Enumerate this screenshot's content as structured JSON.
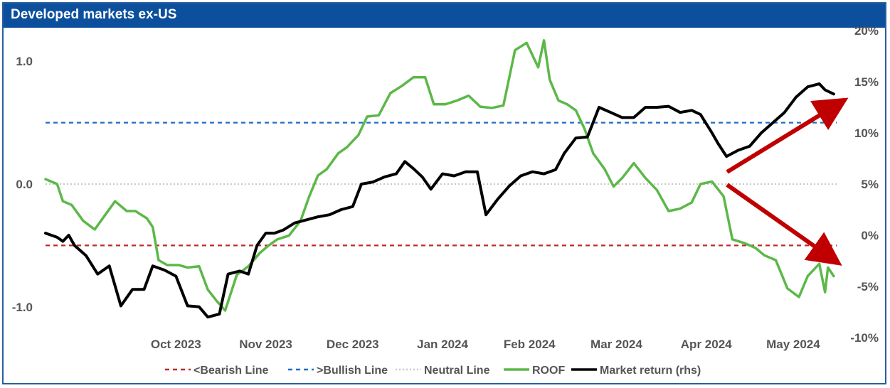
{
  "chart_data": {
    "type": "line",
    "title": "Developed markets ex-US",
    "x_range": [
      "2023-09-01",
      "2024-05-31"
    ],
    "x_ticks": [
      {
        "date": "2023-10-01",
        "label": "Oct 2023"
      },
      {
        "date": "2023-11-01",
        "label": "Nov 2023"
      },
      {
        "date": "2023-12-01",
        "label": "Dec 2023"
      },
      {
        "date": "2024-01-01",
        "label": "Jan 2024"
      },
      {
        "date": "2024-02-01",
        "label": "Feb 2024"
      },
      {
        "date": "2024-03-01",
        "label": "Mar 2024"
      },
      {
        "date": "2024-04-01",
        "label": "Apr 2024"
      },
      {
        "date": "2024-05-01",
        "label": "May 2024"
      }
    ],
    "y_left": {
      "range": [
        -1.25,
        1.25
      ],
      "ticks": [
        1.0,
        0.0,
        -1.0
      ],
      "tick_labels": [
        "1.0",
        "0.0",
        "-1.0"
      ]
    },
    "y_right": {
      "range": [
        -10,
        20
      ],
      "ticks": [
        20,
        15,
        10,
        5,
        0,
        -5,
        -10
      ],
      "tick_labels": [
        "20%",
        "15%",
        "10%",
        "5%",
        "0%",
        "-5%",
        "-10%"
      ]
    },
    "grid": false,
    "legend_position": "bottom",
    "reference_lines": [
      {
        "name": "<Bearish Line",
        "value": -0.5,
        "axis": "left",
        "color": "#c0282d",
        "style": "dashed"
      },
      {
        "name": ">Bullish Line",
        "value": 0.5,
        "axis": "left",
        "color": "#1f6fc5",
        "style": "dashed"
      },
      {
        "name": "Neutral Line",
        "value": 0.0,
        "axis": "left",
        "color": "#c8c8c8",
        "style": "dotted"
      }
    ],
    "series": [
      {
        "name": "ROOF",
        "axis": "left",
        "color": "#5cb849",
        "points": [
          [
            "2023-09-01",
            0.04
          ],
          [
            "2023-09-05",
            0.0
          ],
          [
            "2023-09-07",
            -0.14
          ],
          [
            "2023-09-10",
            -0.17
          ],
          [
            "2023-09-14",
            -0.3
          ],
          [
            "2023-09-18",
            -0.37
          ],
          [
            "2023-09-21",
            -0.27
          ],
          [
            "2023-09-25",
            -0.14
          ],
          [
            "2023-09-29",
            -0.22
          ],
          [
            "2023-10-02",
            -0.22
          ],
          [
            "2023-10-06",
            -0.28
          ],
          [
            "2023-10-08",
            -0.35
          ],
          [
            "2023-10-10",
            -0.62
          ],
          [
            "2023-10-13",
            -0.66
          ],
          [
            "2023-10-17",
            -0.66
          ],
          [
            "2023-10-20",
            -0.68
          ],
          [
            "2023-10-24",
            -0.67
          ],
          [
            "2023-10-27",
            -0.86
          ],
          [
            "2023-10-30",
            -0.95
          ],
          [
            "2023-11-02",
            -1.03
          ],
          [
            "2023-11-06",
            -0.74
          ],
          [
            "2023-11-10",
            -0.67
          ],
          [
            "2023-11-14",
            -0.56
          ],
          [
            "2023-11-17",
            -0.5
          ],
          [
            "2023-11-20",
            -0.45
          ],
          [
            "2023-11-24",
            -0.42
          ],
          [
            "2023-11-28",
            -0.3
          ],
          [
            "2023-12-01",
            -0.1
          ],
          [
            "2023-12-04",
            0.07
          ],
          [
            "2023-12-07",
            0.12
          ],
          [
            "2023-12-11",
            0.25
          ],
          [
            "2023-12-14",
            0.3
          ],
          [
            "2023-12-18",
            0.4
          ],
          [
            "2023-12-21",
            0.55
          ],
          [
            "2023-12-25",
            0.56
          ],
          [
            "2023-12-29",
            0.74
          ],
          [
            "2024-01-02",
            0.8
          ],
          [
            "2024-01-06",
            0.87
          ],
          [
            "2024-01-10",
            0.87
          ],
          [
            "2024-01-13",
            0.65
          ],
          [
            "2024-01-17",
            0.65
          ],
          [
            "2024-01-21",
            0.68
          ],
          [
            "2024-01-25",
            0.72
          ],
          [
            "2024-01-29",
            0.63
          ],
          [
            "2024-02-02",
            0.62
          ],
          [
            "2024-02-06",
            0.64
          ],
          [
            "2024-02-10",
            1.09
          ],
          [
            "2024-02-14",
            1.15
          ],
          [
            "2024-02-18",
            0.95
          ],
          [
            "2024-02-20",
            1.17
          ],
          [
            "2024-02-22",
            0.85
          ],
          [
            "2024-02-25",
            0.68
          ],
          [
            "2024-02-28",
            0.65
          ],
          [
            "2024-03-02",
            0.6
          ],
          [
            "2024-03-05",
            0.45
          ],
          [
            "2024-03-08",
            0.25
          ],
          [
            "2024-03-12",
            0.12
          ],
          [
            "2024-03-15",
            -0.02
          ],
          [
            "2024-03-18",
            0.05
          ],
          [
            "2024-03-22",
            0.17
          ],
          [
            "2024-03-26",
            0.05
          ],
          [
            "2024-03-30",
            -0.05
          ],
          [
            "2024-04-03",
            -0.22
          ],
          [
            "2024-04-07",
            -0.2
          ],
          [
            "2024-04-11",
            -0.15
          ],
          [
            "2024-04-14",
            0.0
          ],
          [
            "2024-04-18",
            0.02
          ],
          [
            "2024-04-22",
            -0.1
          ],
          [
            "2024-04-25",
            -0.45
          ],
          [
            "2024-04-29",
            -0.48
          ],
          [
            "2024-05-03",
            -0.52
          ],
          [
            "2024-05-06",
            -0.58
          ],
          [
            "2024-05-10",
            -0.62
          ],
          [
            "2024-05-14",
            -0.85
          ],
          [
            "2024-05-18",
            -0.92
          ],
          [
            "2024-05-21",
            -0.75
          ],
          [
            "2024-05-25",
            -0.65
          ],
          [
            "2024-05-27",
            -0.88
          ],
          [
            "2024-05-28",
            -0.68
          ],
          [
            "2024-05-30",
            -0.75
          ]
        ]
      },
      {
        "name": "Market return (rhs)",
        "axis": "right",
        "color": "#000000",
        "points": [
          [
            "2023-09-01",
            0.2
          ],
          [
            "2023-09-05",
            -0.2
          ],
          [
            "2023-09-07",
            -0.6
          ],
          [
            "2023-09-09",
            0.0
          ],
          [
            "2023-09-11",
            -1.0
          ],
          [
            "2023-09-15",
            -2.0
          ],
          [
            "2023-09-19",
            -3.8
          ],
          [
            "2023-09-23",
            -3.0
          ],
          [
            "2023-09-27",
            -6.9
          ],
          [
            "2023-10-01",
            -5.3
          ],
          [
            "2023-10-05",
            -5.3
          ],
          [
            "2023-10-08",
            -3.0
          ],
          [
            "2023-10-12",
            -3.4
          ],
          [
            "2023-10-16",
            -4.0
          ],
          [
            "2023-10-20",
            -6.9
          ],
          [
            "2023-10-24",
            -7.0
          ],
          [
            "2023-10-27",
            -8.0
          ],
          [
            "2023-10-31",
            -7.7
          ],
          [
            "2023-11-03",
            -3.8
          ],
          [
            "2023-11-07",
            -3.5
          ],
          [
            "2023-11-10",
            -3.8
          ],
          [
            "2023-11-13",
            -1.0
          ],
          [
            "2023-11-16",
            0.2
          ],
          [
            "2023-11-19",
            0.2
          ],
          [
            "2023-11-22",
            0.5
          ],
          [
            "2023-11-26",
            1.2
          ],
          [
            "2023-11-30",
            1.5
          ],
          [
            "2023-12-04",
            1.8
          ],
          [
            "2023-12-08",
            2.0
          ],
          [
            "2023-12-12",
            2.5
          ],
          [
            "2023-12-16",
            2.8
          ],
          [
            "2023-12-19",
            5.0
          ],
          [
            "2023-12-23",
            5.2
          ],
          [
            "2023-12-27",
            5.7
          ],
          [
            "2023-12-31",
            6.0
          ],
          [
            "2024-01-03",
            7.2
          ],
          [
            "2024-01-06",
            6.5
          ],
          [
            "2024-01-09",
            5.7
          ],
          [
            "2024-01-12",
            4.5
          ],
          [
            "2024-01-16",
            6.0
          ],
          [
            "2024-01-20",
            5.8
          ],
          [
            "2024-01-24",
            6.2
          ],
          [
            "2024-01-28",
            6.2
          ],
          [
            "2024-01-31",
            2.0
          ],
          [
            "2024-02-04",
            3.5
          ],
          [
            "2024-02-08",
            4.8
          ],
          [
            "2024-02-12",
            5.8
          ],
          [
            "2024-02-16",
            6.2
          ],
          [
            "2024-02-20",
            6.0
          ],
          [
            "2024-02-24",
            6.4
          ],
          [
            "2024-02-27",
            8.0
          ],
          [
            "2024-03-02",
            9.5
          ],
          [
            "2024-03-06",
            9.6
          ],
          [
            "2024-03-10",
            12.5
          ],
          [
            "2024-03-14",
            12.0
          ],
          [
            "2024-03-18",
            11.5
          ],
          [
            "2024-03-22",
            11.5
          ],
          [
            "2024-03-26",
            12.5
          ],
          [
            "2024-03-30",
            12.5
          ],
          [
            "2024-04-03",
            12.6
          ],
          [
            "2024-04-07",
            12.0
          ],
          [
            "2024-04-11",
            12.2
          ],
          [
            "2024-04-14",
            11.8
          ],
          [
            "2024-04-18",
            10.0
          ],
          [
            "2024-04-20",
            9.0
          ],
          [
            "2024-04-23",
            7.7
          ],
          [
            "2024-04-27",
            8.3
          ],
          [
            "2024-05-01",
            8.7
          ],
          [
            "2024-05-05",
            10.0
          ],
          [
            "2024-05-09",
            11.0
          ],
          [
            "2024-05-13",
            12.0
          ],
          [
            "2024-05-17",
            13.5
          ],
          [
            "2024-05-21",
            14.5
          ],
          [
            "2024-05-25",
            14.8
          ],
          [
            "2024-05-27",
            14.2
          ],
          [
            "2024-05-30",
            13.8
          ]
        ]
      }
    ],
    "legend": [
      {
        "label": "<Bearish Line",
        "color": "#c0282d",
        "style": "dashed"
      },
      {
        "label": ">Bullish Line",
        "color": "#1f6fc5",
        "style": "dashed"
      },
      {
        "label": "Neutral Line",
        "color": "#c8c8c8",
        "style": "dotted"
      },
      {
        "label": "ROOF",
        "color": "#5cb849",
        "style": "solid"
      },
      {
        "label": "Market return (rhs)",
        "color": "#000000",
        "style": "solid"
      }
    ],
    "annotations": [
      {
        "type": "arrow",
        "direction": "up-right",
        "color": "#c00000"
      },
      {
        "type": "arrow",
        "direction": "down-right",
        "color": "#c00000"
      }
    ]
  }
}
